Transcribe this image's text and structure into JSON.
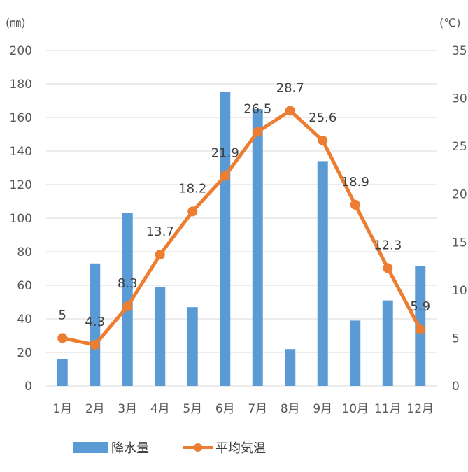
{
  "chart_data": {
    "type": "bar",
    "categories": [
      "1月",
      "2月",
      "3月",
      "4月",
      "5月",
      "6月",
      "7月",
      "8月",
      "9月",
      "10月",
      "11月",
      "12月"
    ],
    "left_axis": {
      "unit_label": "(㎜)",
      "ylim": [
        0,
        200
      ],
      "ticks": [
        0,
        20,
        40,
        60,
        80,
        100,
        120,
        140,
        160,
        180,
        200
      ]
    },
    "right_axis": {
      "unit_label": "(℃)",
      "ylim": [
        0,
        35
      ],
      "ticks": [
        0,
        5,
        10,
        15,
        20,
        25,
        30,
        35
      ]
    },
    "grid": true,
    "legend_position": "bottom",
    "series": [
      {
        "name": "降水量",
        "kind": "bar",
        "axis": "left",
        "color": "#5b9bd5",
        "values": [
          16,
          73,
          103,
          59,
          47,
          175,
          165,
          22,
          134,
          39,
          51,
          71.5
        ]
      },
      {
        "name": "平均気温",
        "kind": "line",
        "axis": "right",
        "color": "#ed7d31",
        "values": [
          5,
          4.3,
          8.3,
          13.7,
          18.2,
          21.9,
          26.5,
          28.7,
          25.6,
          18.9,
          12.3,
          5.9
        ],
        "data_labels": [
          "5",
          "4.3",
          "8.3",
          "13.7",
          "18.2",
          "21.9",
          "26.5",
          "28.7",
          "25.6",
          "18.9",
          "12.3",
          "5.9"
        ]
      }
    ]
  }
}
